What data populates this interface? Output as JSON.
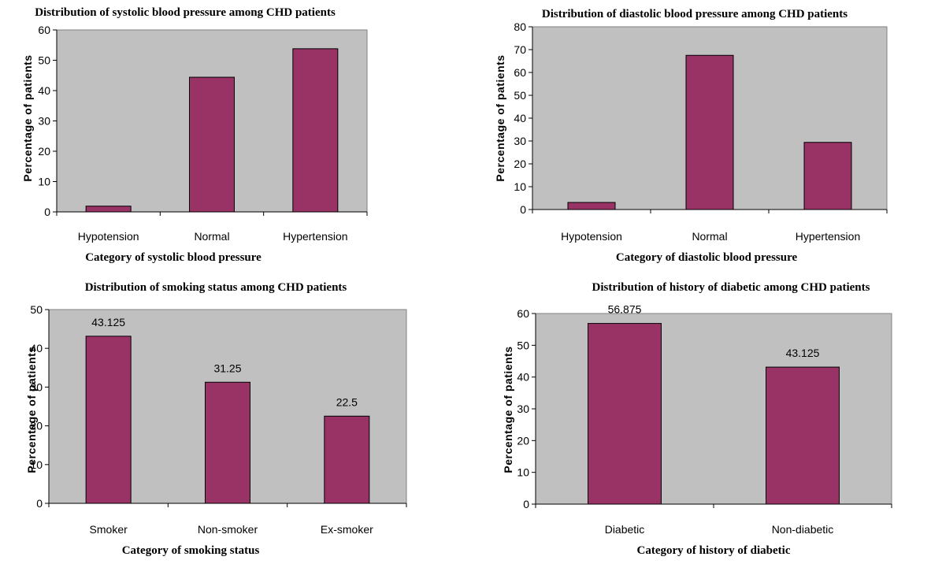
{
  "chart_data": [
    {
      "type": "bar",
      "title": "Distribution of systolic blood pressure among CHD patients",
      "xlabel": "Category of systolic blood pressure",
      "ylabel": "Percentage of patients",
      "categories": [
        "Hypotension",
        "Normal",
        "Hypertension"
      ],
      "values": [
        1.9,
        44.4,
        53.8
      ],
      "data_labels": [],
      "ylim": [
        0,
        60
      ],
      "yticks": [
        0,
        10,
        20,
        30,
        40,
        50,
        60
      ],
      "grid": false,
      "legend": "none",
      "colors": {
        "bar": "#993366",
        "plot_bg": "#c0c0c0"
      }
    },
    {
      "type": "bar",
      "title": "Distribution of diastolic blood pressure among CHD patients",
      "xlabel": "Category of diastolic blood pressure",
      "ylabel": "Percentage of patients",
      "categories": [
        "Hypotension",
        "Normal",
        "Hypertension"
      ],
      "values": [
        3.1,
        67.5,
        29.4
      ],
      "data_labels": [],
      "ylim": [
        0,
        80
      ],
      "yticks": [
        0,
        10,
        20,
        30,
        40,
        50,
        60,
        70,
        80
      ],
      "grid": false,
      "legend": "none",
      "colors": {
        "bar": "#993366",
        "plot_bg": "#c0c0c0"
      }
    },
    {
      "type": "bar",
      "title": "Distribution of smoking status among CHD patients",
      "xlabel": "Category of smoking status",
      "ylabel": "Percentage of patients",
      "categories": [
        "Smoker",
        "Non-smoker",
        "Ex-smoker"
      ],
      "values": [
        43.125,
        31.25,
        22.5
      ],
      "data_labels": [
        "43.125",
        "31.25",
        "22.5"
      ],
      "ylim": [
        0,
        50
      ],
      "yticks": [
        0,
        10,
        20,
        30,
        40,
        50
      ],
      "grid": false,
      "legend": "none",
      "colors": {
        "bar": "#993366",
        "plot_bg": "#c0c0c0"
      }
    },
    {
      "type": "bar",
      "title": "Distribution of history of diabetic among CHD patients",
      "xlabel": "Category of history of diabetic",
      "ylabel": "Percentage of patients",
      "categories": [
        "Diabetic",
        "Non-diabetic"
      ],
      "values": [
        56.875,
        43.125
      ],
      "data_labels": [
        "56.875",
        "43.125"
      ],
      "ylim": [
        0,
        60
      ],
      "yticks": [
        0,
        10,
        20,
        30,
        40,
        50,
        60
      ],
      "grid": false,
      "legend": "none",
      "colors": {
        "bar": "#993366",
        "plot_bg": "#c0c0c0"
      }
    }
  ]
}
